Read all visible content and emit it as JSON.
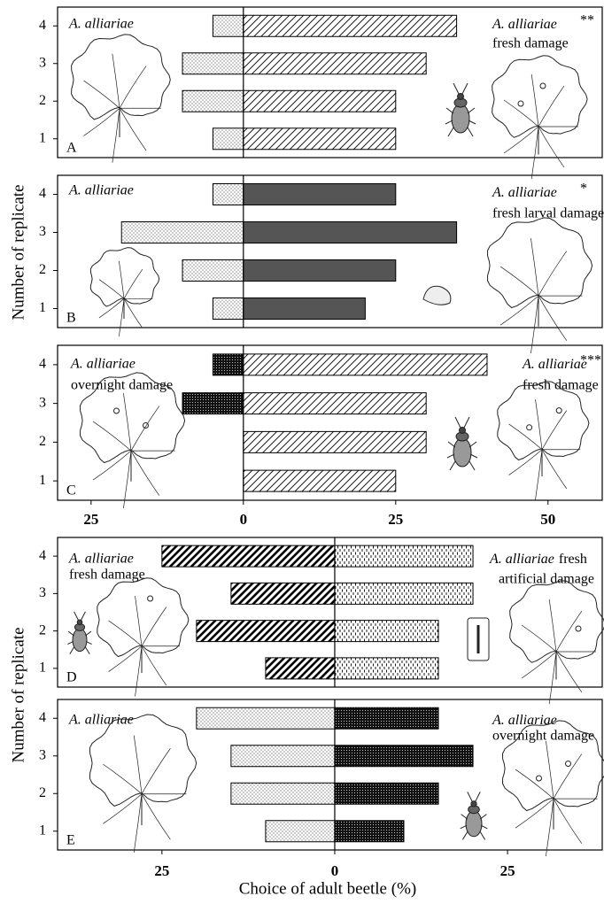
{
  "figure": {
    "ylabels": [
      "Number of replicate",
      "Number of replicate"
    ],
    "xlabel": "Choice of adult beetle (%)"
  },
  "chart_data": [
    {
      "type": "bar",
      "panel": "A",
      "categories": [
        "1",
        "2",
        "3",
        "4"
      ],
      "series": [
        {
          "side": "left",
          "pattern": "dots",
          "values": [
            5,
            10,
            10,
            5
          ]
        },
        {
          "side": "right",
          "pattern": "hatch",
          "values": [
            25,
            25,
            30,
            35
          ]
        }
      ],
      "xlim": [
        -30.5,
        58.9
      ],
      "left_species": "A. alliariae",
      "right_species": "A. alliariae",
      "right_line2": "fresh damage",
      "significance": "**"
    },
    {
      "type": "bar",
      "panel": "B",
      "categories": [
        "1",
        "2",
        "3",
        "4"
      ],
      "series": [
        {
          "side": "left",
          "pattern": "dots",
          "values": [
            5,
            10,
            20,
            5
          ]
        },
        {
          "side": "right",
          "pattern": "gray",
          "values": [
            20,
            25,
            35,
            25
          ]
        }
      ],
      "xlim": [
        -30.5,
        58.9
      ],
      "left_species": "A. alliariae",
      "right_species": "A. alliariae",
      "right_line2": "fresh larval damage",
      "significance": "*"
    },
    {
      "type": "bar",
      "panel": "C",
      "categories": [
        "1",
        "2",
        "3",
        "4"
      ],
      "series": [
        {
          "side": "left",
          "pattern": "darkdots",
          "values": [
            0,
            0,
            10,
            5
          ]
        },
        {
          "side": "right",
          "pattern": "hatch",
          "values": [
            25,
            30,
            30,
            40
          ]
        }
      ],
      "xlim": [
        -30.5,
        58.9
      ],
      "xticks": [
        {
          "value": -25,
          "label": "25"
        },
        0,
        25,
        50
      ],
      "left_species": "A. alliariae",
      "left_line2": "overnight  damage",
      "right_species": "A. alliariae",
      "right_line2": "fresh damage",
      "significance": "***"
    },
    {
      "type": "bar",
      "panel": "D",
      "categories": [
        "1",
        "2",
        "3",
        "4"
      ],
      "series": [
        {
          "side": "left",
          "pattern": "boldhatch",
          "values": [
            10,
            20,
            15,
            25
          ]
        },
        {
          "side": "right",
          "pattern": "dashes",
          "values": [
            15,
            15,
            20,
            20
          ]
        }
      ],
      "xlim": [
        -40.1,
        38.7
      ],
      "left_species": "A. alliariae",
      "left_line2": "fresh damage",
      "right_species": "A. alliariae",
      "right_suffix": "fresh",
      "right_line2": "artificial damage"
    },
    {
      "type": "bar",
      "panel": "E",
      "categories": [
        "1",
        "2",
        "3",
        "4"
      ],
      "series": [
        {
          "side": "left",
          "pattern": "dots",
          "values": [
            10,
            15,
            15,
            20
          ]
        },
        {
          "side": "right",
          "pattern": "darkdots",
          "values": [
            10,
            15,
            20,
            15
          ]
        }
      ],
      "xlim": [
        -40.1,
        38.7
      ],
      "xticks": [
        {
          "value": -25,
          "label": "25"
        },
        0,
        25
      ],
      "left_species": "A. alliariae",
      "right_species": "A. alliariae",
      "right_line2": "overnight damage"
    }
  ]
}
